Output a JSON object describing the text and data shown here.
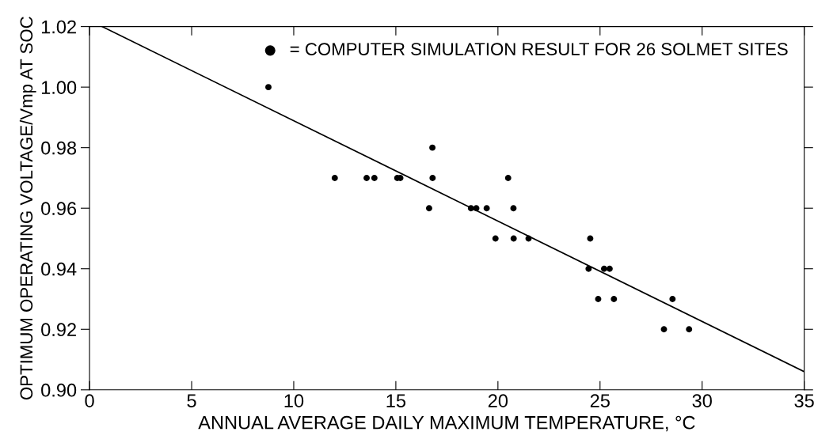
{
  "chart_data": {
    "type": "scatter",
    "xlabel": "ANNUAL AVERAGE DAILY MAXIMUM TEMPERATURE, °C",
    "ylabel": "OPTIMUM OPERATING VOLTAGE/Vmp AT SOC",
    "xlim": [
      0,
      35
    ],
    "xticks": [
      0,
      5,
      10,
      15,
      20,
      25,
      30,
      35
    ],
    "ylim": [
      0.9,
      1.02
    ],
    "yticks": [
      {
        "value": 0.9,
        "label": "0.90"
      },
      0.92,
      0.94,
      0.96,
      0.98,
      {
        "value": 1,
        "label": "1.00"
      },
      1.02
    ],
    "grid": false,
    "legend": "top right",
    "marker": "circle",
    "series": [
      {
        "name": "= COMPUTER SIMULATION RESULT FOR 26 SOLMET SITES",
        "color": "#000000",
        "x": [
          8.76,
          12.01,
          13.57,
          13.95,
          15.07,
          15.22,
          16.79,
          16.8,
          16.63,
          18.68,
          18.94,
          19.45,
          19.88,
          20.5,
          20.76,
          20.77,
          21.5,
          24.44,
          24.52,
          25.2,
          25.47,
          24.91,
          25.68,
          28.55,
          28.13,
          29.36
        ],
        "values": [
          1.0,
          0.97,
          0.97,
          0.97,
          0.97,
          0.97,
          0.98,
          0.97,
          0.96,
          0.96,
          0.96,
          0.96,
          0.95,
          0.97,
          0.96,
          0.95,
          0.95,
          0.94,
          0.95,
          0.94,
          0.94,
          0.93,
          0.93,
          0.93,
          0.92,
          0.92
        ]
      },
      {
        "color": "#000000",
        "type": "line",
        "marker": "none",
        "x": [
          0.62,
          35
        ],
        "values": [
          1.02,
          0.906
        ]
      }
    ]
  }
}
